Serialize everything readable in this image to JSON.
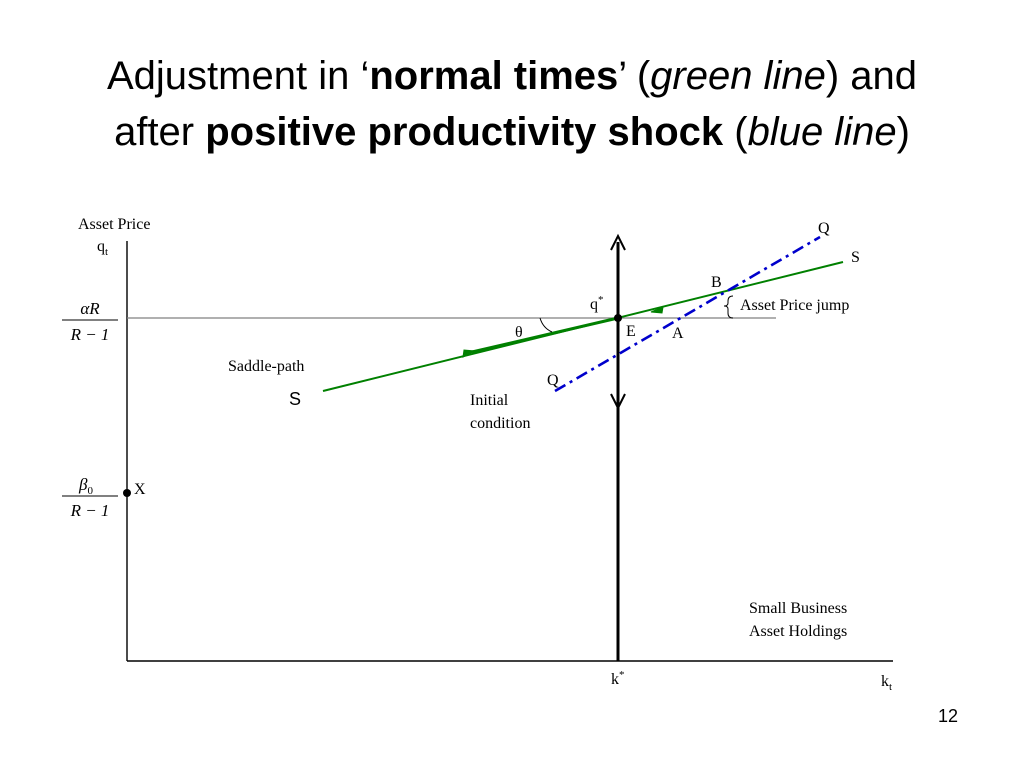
{
  "title": {
    "line1_part1": "Adjustment in ‘",
    "line1_bold": "normal times",
    "line1_part2": "’ (",
    "line1_italic": "green line",
    "line1_part3": ") and",
    "line2_part1": "after ",
    "line2_bold": "positive productivity shock",
    "line2_part2": " (",
    "line2_italic": "blue line",
    "line2_part3": ")"
  },
  "diagram": {
    "y_axis_title": "Asset Price",
    "y_axis_var": "q",
    "y_axis_var_sub": "t",
    "x_axis_var": "k",
    "x_axis_var_sub": "t",
    "x_axis_title_line1": "Small Business",
    "x_axis_title_line2": "Asset Holdings",
    "level_high_num": "αR",
    "level_high_den": "R − 1",
    "level_low_num": "β",
    "level_low_num_sub": "0",
    "level_low_den": "R − 1",
    "point_x": "X",
    "point_e": "E",
    "point_a": "A",
    "point_b": "B",
    "q_star": "q",
    "q_star_sup": "*",
    "k_star": "k",
    "k_star_sup": "*",
    "theta": "θ",
    "saddle_path": "Saddle-path",
    "s_lower": "S",
    "s_upper": "S",
    "q_upper": "Q",
    "q_lower": "Q",
    "initial_line1": "Initial",
    "initial_line2": "condition",
    "jump_label": "Asset Price jump",
    "colors": {
      "saddle_path": "#008000",
      "shock_line": "#0000cc",
      "axes": "#000000",
      "reference": "#808080"
    }
  },
  "page_number": "12"
}
